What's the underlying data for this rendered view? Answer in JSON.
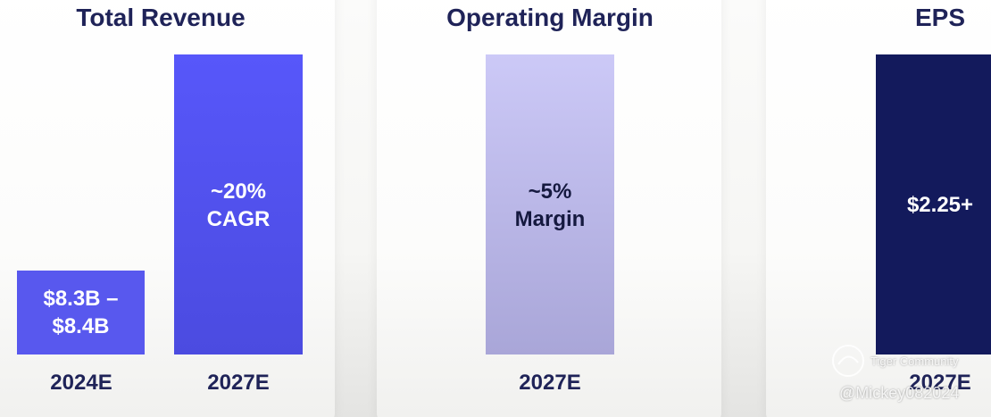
{
  "panels": [
    {
      "title": "Total Revenue",
      "bars": [
        {
          "label": [
            "$8.3B –",
            "$8.4B"
          ],
          "category": "2024E"
        },
        {
          "label": [
            "~20%",
            "CAGR"
          ],
          "category": "2027E"
        }
      ]
    },
    {
      "title": "Operating Margin",
      "bars": [
        {
          "label": [
            "~5%",
            "Margin"
          ],
          "category": "2027E"
        }
      ]
    },
    {
      "title": "EPS",
      "bars": [
        {
          "label": [
            "$2.25+"
          ],
          "category": "2027E"
        }
      ]
    }
  ],
  "watermark": {
    "brand": "Tiger Community",
    "handle": "@Mickey082024"
  }
}
